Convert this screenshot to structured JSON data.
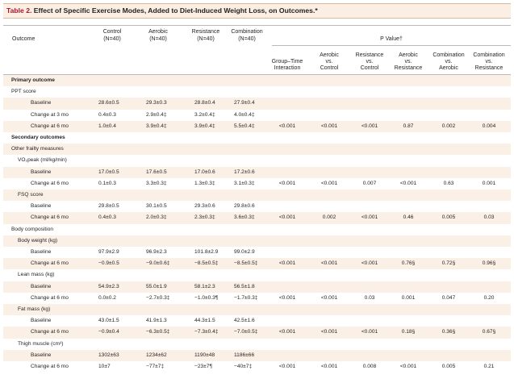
{
  "title": {
    "number": "Table 2.",
    "text": "Effect of Specific Exercise Modes, Added to Diet-Induced Weight Loss, on Outcomes.*"
  },
  "header": {
    "outcome": "Outcome",
    "groups": [
      {
        "name": "Control",
        "n": "(N=40)"
      },
      {
        "name": "Aerobic",
        "n": "(N=40)"
      },
      {
        "name": "Resistance",
        "n": "(N=40)"
      },
      {
        "name": "Combination",
        "n": "(N=40)"
      }
    ],
    "pvalue_title": "P Value†",
    "pvalue_cols": [
      {
        "line1": "Group–Time",
        "line2": "Interaction",
        "line3": ""
      },
      {
        "line1": "Aerobic",
        "line2": "vs.",
        "line3": "Control"
      },
      {
        "line1": "Resistance",
        "line2": "vs.",
        "line3": "Control"
      },
      {
        "line1": "Aerobic",
        "line2": "vs.",
        "line3": "Resistance"
      },
      {
        "line1": "Combination",
        "line2": "vs.",
        "line3": "Aerobic"
      },
      {
        "line1": "Combination",
        "line2": "vs.",
        "line3": "Resistance"
      }
    ]
  },
  "rows": [
    {
      "label": "Primary outcome",
      "indent": 0,
      "bold": true,
      "values": [
        "",
        "",
        "",
        ""
      ],
      "p": [
        "",
        "",
        "",
        "",
        "",
        ""
      ]
    },
    {
      "label": "PPT score",
      "indent": 0,
      "bold": false,
      "values": [
        "",
        "",
        "",
        ""
      ],
      "p": [
        "",
        "",
        "",
        "",
        "",
        ""
      ]
    },
    {
      "label": "Baseline",
      "indent": 2,
      "bold": false,
      "values": [
        "28.6±0.5",
        "29.3±0.3",
        "28.8±0.4",
        "27.9±0.4"
      ],
      "p": [
        "",
        "",
        "",
        "",
        "",
        ""
      ]
    },
    {
      "label": "Change at 3 mo",
      "indent": 2,
      "bold": false,
      "values": [
        "0.4±0.3",
        "2.9±0.4‡",
        "3.2±0.4‡",
        "4.0±0.4‡"
      ],
      "p": [
        "",
        "",
        "",
        "",
        "",
        ""
      ]
    },
    {
      "label": "Change at 6 mo",
      "indent": 2,
      "bold": false,
      "values": [
        "1.0±0.4",
        "3.9±0.4‡",
        "3.9±0.4‡",
        "5.5±0.4‡"
      ],
      "p": [
        "<0.001",
        "<0.001",
        "<0.001",
        "0.87",
        "0.002",
        "0.004"
      ]
    },
    {
      "label": "Secondary outcomes",
      "indent": 0,
      "bold": true,
      "values": [
        "",
        "",
        "",
        ""
      ],
      "p": [
        "",
        "",
        "",
        "",
        "",
        ""
      ]
    },
    {
      "label": "Other frailty measures",
      "indent": 0,
      "bold": false,
      "values": [
        "",
        "",
        "",
        ""
      ],
      "p": [
        "",
        "",
        "",
        "",
        "",
        ""
      ]
    },
    {
      "label": "VO₂peak (ml/kg/min)",
      "indent": 1,
      "bold": false,
      "values": [
        "",
        "",
        "",
        ""
      ],
      "p": [
        "",
        "",
        "",
        "",
        "",
        ""
      ]
    },
    {
      "label": "Baseline",
      "indent": 2,
      "bold": false,
      "values": [
        "17.0±0.5",
        "17.6±0.5",
        "17.0±0.6",
        "17.2±0.6"
      ],
      "p": [
        "",
        "",
        "",
        "",
        "",
        ""
      ]
    },
    {
      "label": "Change at 6 mo",
      "indent": 2,
      "bold": false,
      "values": [
        "0.1±0.3",
        "3.3±0.3‡",
        "1.3±0.3‡",
        "3.1±0.3‡"
      ],
      "p": [
        "<0.001",
        "<0.001",
        "0.007",
        "<0.001",
        "0.63",
        "0.001"
      ]
    },
    {
      "label": "FSQ score",
      "indent": 1,
      "bold": false,
      "values": [
        "",
        "",
        "",
        ""
      ],
      "p": [
        "",
        "",
        "",
        "",
        "",
        ""
      ]
    },
    {
      "label": "Baseline",
      "indent": 2,
      "bold": false,
      "values": [
        "29.8±0.5",
        "30.1±0.5",
        "29.3±0.6",
        "29.8±0.6"
      ],
      "p": [
        "",
        "",
        "",
        "",
        "",
        ""
      ]
    },
    {
      "label": "Change at 6 mo",
      "indent": 2,
      "bold": false,
      "values": [
        "0.4±0.3",
        "2.0±0.3‡",
        "2.3±0.3‡",
        "3.6±0.3‡"
      ],
      "p": [
        "<0.001",
        "0.002",
        "<0.001",
        "0.46",
        "0.005",
        "0.03"
      ]
    },
    {
      "label": "Body composition",
      "indent": 0,
      "bold": false,
      "values": [
        "",
        "",
        "",
        ""
      ],
      "p": [
        "",
        "",
        "",
        "",
        "",
        ""
      ]
    },
    {
      "label": "Body weight (kg)",
      "indent": 1,
      "bold": false,
      "values": [
        "",
        "",
        "",
        ""
      ],
      "p": [
        "",
        "",
        "",
        "",
        "",
        ""
      ]
    },
    {
      "label": "Baseline",
      "indent": 2,
      "bold": false,
      "values": [
        "97.9±2.9",
        "96.9±2.3",
        "101.8±2.9",
        "99.0±2.9"
      ],
      "p": [
        "",
        "",
        "",
        "",
        "",
        ""
      ]
    },
    {
      "label": "Change at 6 mo",
      "indent": 2,
      "bold": false,
      "values": [
        "−0.9±0.5",
        "−9.0±0.6‡",
        "−8.5±0.5‡",
        "−8.5±0.5‡"
      ],
      "p": [
        "<0.001",
        "<0.001",
        "<0.001",
        "0.76§",
        "0.72§",
        "0.96§"
      ]
    },
    {
      "label": "Lean mass (kg)",
      "indent": 1,
      "bold": false,
      "values": [
        "",
        "",
        "",
        ""
      ],
      "p": [
        "",
        "",
        "",
        "",
        "",
        ""
      ]
    },
    {
      "label": "Baseline",
      "indent": 2,
      "bold": false,
      "values": [
        "54.9±2.3",
        "55.0±1.9",
        "58.1±2.3",
        "56.5±1.8"
      ],
      "p": [
        "",
        "",
        "",
        "",
        "",
        ""
      ]
    },
    {
      "label": "Change at 6 mo",
      "indent": 2,
      "bold": false,
      "values": [
        "0.0±0.2",
        "−2.7±0.3‡",
        "−1.0±0.3¶",
        "−1.7±0.3‡"
      ],
      "p": [
        "<0.001",
        "<0.001",
        "0.03",
        "0.001",
        "0.047",
        "0.20"
      ]
    },
    {
      "label": "Fat mass (kg)",
      "indent": 1,
      "bold": false,
      "values": [
        "",
        "",
        "",
        ""
      ],
      "p": [
        "",
        "",
        "",
        "",
        "",
        ""
      ]
    },
    {
      "label": "Baseline",
      "indent": 2,
      "bold": false,
      "values": [
        "43.0±1.5",
        "41.9±1.3",
        "44.3±1.5",
        "42.5±1.6"
      ],
      "p": [
        "",
        "",
        "",
        "",
        "",
        ""
      ]
    },
    {
      "label": "Change at 6 mo",
      "indent": 2,
      "bold": false,
      "values": [
        "−0.9±0.4",
        "−6.3±0.5‡",
        "−7.3±0.4‡",
        "−7.0±0.5‡"
      ],
      "p": [
        "<0.001",
        "<0.001",
        "<0.001",
        "0.18§",
        "0.36§",
        "0.67§"
      ]
    },
    {
      "label": "Thigh muscle (cm³)",
      "indent": 1,
      "bold": false,
      "values": [
        "",
        "",
        "",
        ""
      ],
      "p": [
        "",
        "",
        "",
        "",
        "",
        ""
      ]
    },
    {
      "label": "Baseline",
      "indent": 2,
      "bold": false,
      "values": [
        "1302±63",
        "1234±62",
        "1190±48",
        "1186±66"
      ],
      "p": [
        "",
        "",
        "",
        "",
        "",
        ""
      ]
    },
    {
      "label": "Change at 6 mo",
      "indent": 2,
      "bold": false,
      "values": [
        "10±7",
        "−77±7‡",
        "−23±7¶",
        "−40±7‡"
      ],
      "p": [
        "<0.001",
        "<0.001",
        "0.008",
        "<0.001",
        "0.005",
        "0.21"
      ]
    }
  ],
  "colors": {
    "title_background": "#fbeee2",
    "row_shade": "#fbf0e6",
    "table_number": "#a6192e",
    "text": "#231f20"
  }
}
